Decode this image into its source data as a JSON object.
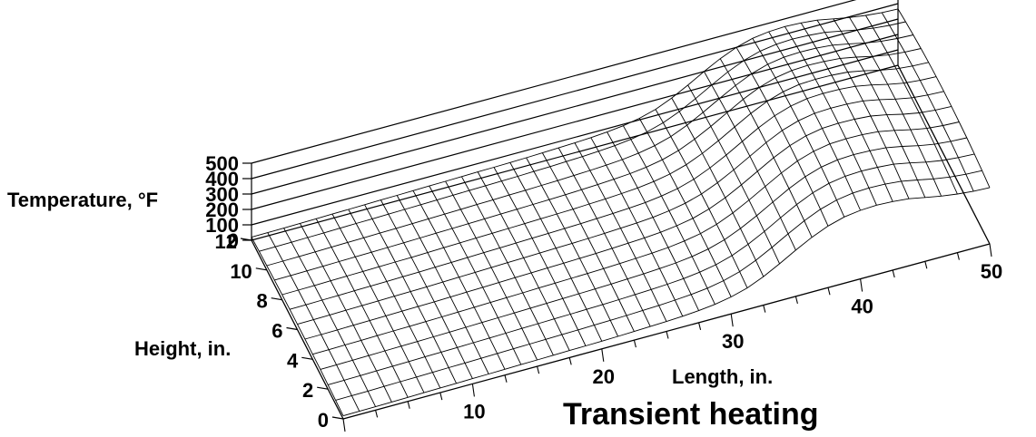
{
  "chart_data": {
    "type": "surface",
    "caption": "Transient heating",
    "zlabel": "Temperature, °F",
    "ylabel": "Height, in.",
    "xlabel": "Length, in.",
    "xlim": [
      0,
      50
    ],
    "ylim": [
      0,
      12
    ],
    "zlim": [
      0,
      500
    ],
    "xticks": [
      "10",
      "20",
      "30",
      "40",
      "50"
    ],
    "yticks": [
      "0",
      "2",
      "4",
      "6",
      "8",
      "10",
      "12"
    ],
    "zticks": [
      "0",
      "100",
      "200",
      "300",
      "400",
      "500"
    ],
    "xtick_values": [
      10,
      20,
      30,
      40,
      50
    ],
    "ytick_values": [
      0,
      2,
      4,
      6,
      8,
      10,
      12
    ],
    "ztick_values": [
      0,
      100,
      200,
      300,
      400,
      500
    ],
    "x_grid": [
      0,
      1.25,
      2.5,
      3.75,
      5,
      6.25,
      7.5,
      8.75,
      10,
      11.25,
      12.5,
      13.75,
      15,
      16.25,
      17.5,
      18.75,
      20,
      21.25,
      22.5,
      23.75,
      25,
      26.25,
      27.5,
      28.75,
      30,
      31.25,
      32.5,
      33.75,
      35,
      36.25,
      37.5,
      38.75,
      40,
      41.25,
      42.5,
      43.75,
      45,
      46.25,
      47.5,
      48.75,
      50
    ],
    "y_grid": [
      0,
      1,
      2,
      3,
      4,
      5,
      6,
      7,
      8,
      9,
      10,
      11,
      12
    ],
    "z_profile_center": [
      35,
      36,
      38,
      40,
      42,
      44,
      46,
      48,
      50,
      53,
      56,
      59,
      62,
      65,
      68,
      71,
      74,
      77,
      80,
      85,
      90,
      96,
      104,
      118,
      138,
      170,
      215,
      270,
      330,
      390,
      440,
      475,
      495,
      500,
      498,
      490,
      470,
      445,
      425,
      415,
      410
    ],
    "z_profile_edge": [
      20,
      21,
      22,
      24,
      26,
      28,
      30,
      32,
      34,
      36,
      38,
      40,
      42,
      44,
      46,
      48,
      50,
      53,
      56,
      60,
      64,
      70,
      78,
      90,
      110,
      140,
      185,
      240,
      300,
      355,
      400,
      430,
      445,
      450,
      445,
      435,
      415,
      395,
      380,
      370,
      365
    ],
    "grid": true
  }
}
